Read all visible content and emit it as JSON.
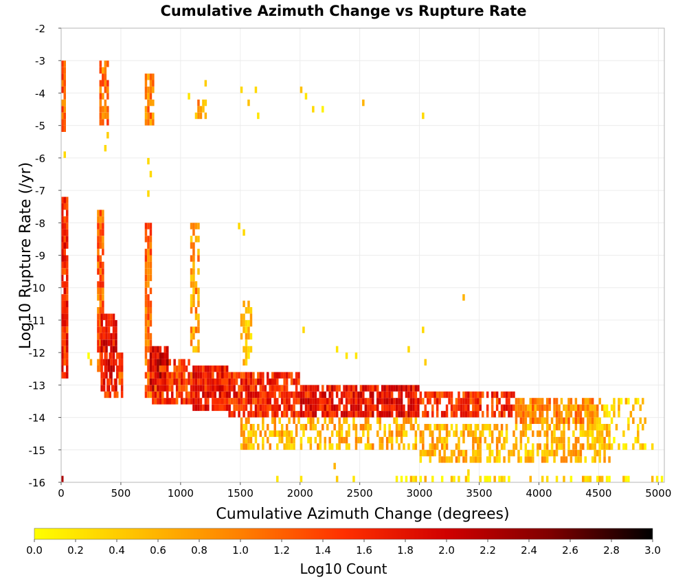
{
  "chart_data": {
    "type": "heatmap",
    "title": "Cumulative Azimuth Change vs Rupture Rate",
    "xlabel": "Cumulative Azimuth Change (degrees)",
    "ylabel": "Log10 Rupture Rate (/yr)",
    "xlim": [
      0,
      5050
    ],
    "ylim": [
      -16,
      -2
    ],
    "x_ticks": [
      0,
      500,
      1000,
      1500,
      2000,
      2500,
      3000,
      3500,
      4000,
      4500,
      5000
    ],
    "y_ticks": [
      -2,
      -3,
      -4,
      -5,
      -6,
      -7,
      -8,
      -9,
      -10,
      -11,
      -12,
      -13,
      -14,
      -15,
      -16
    ],
    "grid": true,
    "colorbar": {
      "label": "Log10 Count",
      "min": 0.0,
      "max": 3.0,
      "ticks": [
        "0.0",
        "0.2",
        "0.4",
        "0.6",
        "0.8",
        "1.0",
        "1.2",
        "1.4",
        "1.6",
        "1.8",
        "2.0",
        "2.2",
        "2.4",
        "2.6",
        "2.8",
        "3.0"
      ],
      "colors": [
        "#ffff00",
        "#ffc000",
        "#ff8000",
        "#ff3000",
        "#d00000",
        "#800000",
        "#000000"
      ],
      "placement": "bottom"
    },
    "bin_size": {
      "x": 20,
      "y": 0.2
    },
    "density_regions": [
      {
        "x_range": [
          0,
          60
        ],
        "y_range": [
          -12.8,
          -7.2
        ],
        "value": 1.6,
        "fill": 0.9
      },
      {
        "x_range": [
          0,
          40
        ],
        "y_range": [
          -5.2,
          -3.0
        ],
        "value": 1.2,
        "fill": 0.85
      },
      {
        "x_range": [
          200,
          260
        ],
        "y_range": [
          -12.6,
          -12.0
        ],
        "value": 0.3,
        "fill": 0.4
      },
      {
        "x_range": [
          300,
          360
        ],
        "y_range": [
          -12.6,
          -7.6
        ],
        "value": 1.2,
        "fill": 0.85
      },
      {
        "x_range": [
          330,
          460
        ],
        "y_range": [
          -13.2,
          -10.8
        ],
        "value": 1.8,
        "fill": 0.9
      },
      {
        "x_range": [
          320,
          400
        ],
        "y_range": [
          -5.0,
          -3.0
        ],
        "value": 1.1,
        "fill": 0.8
      },
      {
        "x_range": [
          360,
          520
        ],
        "y_range": [
          -13.4,
          -12.0
        ],
        "value": 1.3,
        "fill": 0.8
      },
      {
        "x_range": [
          700,
          760
        ],
        "y_range": [
          -13.4,
          -8.0
        ],
        "value": 1.2,
        "fill": 0.85
      },
      {
        "x_range": [
          740,
          900
        ],
        "y_range": [
          -13.2,
          -11.8
        ],
        "value": 2.0,
        "fill": 0.9
      },
      {
        "x_range": [
          700,
          780
        ],
        "y_range": [
          -5.0,
          -3.4
        ],
        "value": 1.0,
        "fill": 0.75
      },
      {
        "x_range": [
          760,
          1100
        ],
        "y_range": [
          -13.6,
          -12.2
        ],
        "value": 1.5,
        "fill": 0.85
      },
      {
        "x_range": [
          1080,
          1150
        ],
        "y_range": [
          -12.0,
          -8.0
        ],
        "value": 0.8,
        "fill": 0.6
      },
      {
        "x_range": [
          1100,
          1400
        ],
        "y_range": [
          -13.8,
          -12.4
        ],
        "value": 1.7,
        "fill": 0.9
      },
      {
        "x_range": [
          1120,
          1220
        ],
        "y_range": [
          -4.8,
          -4.2
        ],
        "value": 0.8,
        "fill": 0.7
      },
      {
        "x_range": [
          1400,
          2000
        ],
        "y_range": [
          -14.0,
          -12.6
        ],
        "value": 1.6,
        "fill": 0.85
      },
      {
        "x_range": [
          1500,
          1600
        ],
        "y_range": [
          -12.4,
          -10.4
        ],
        "value": 0.5,
        "fill": 0.5
      },
      {
        "x_range": [
          2000,
          3000
        ],
        "y_range": [
          -14.0,
          -13.0
        ],
        "value": 1.7,
        "fill": 0.85
      },
      {
        "x_range": [
          3000,
          3800
        ],
        "y_range": [
          -14.0,
          -13.2
        ],
        "value": 1.5,
        "fill": 0.8
      },
      {
        "x_range": [
          3800,
          4500
        ],
        "y_range": [
          -14.2,
          -13.4
        ],
        "value": 0.9,
        "fill": 0.7
      },
      {
        "x_range": [
          1500,
          3000
        ],
        "y_range": [
          -15.0,
          -14.0
        ],
        "value": 0.6,
        "fill": 0.5
      },
      {
        "x_range": [
          3000,
          4600
        ],
        "y_range": [
          -15.4,
          -14.2
        ],
        "value": 0.6,
        "fill": 0.55
      },
      {
        "x_range": [
          4400,
          4900
        ],
        "y_range": [
          -15.0,
          -13.4
        ],
        "value": 0.4,
        "fill": 0.4
      },
      {
        "x_range": [
          2800,
          5040
        ],
        "y_range": [
          -16.0,
          -15.8
        ],
        "value": 0.3,
        "fill": 0.45
      },
      {
        "x_range": [
          0,
          20
        ],
        "y_range": [
          -16.0,
          -15.8
        ],
        "value": 2.6,
        "fill": 1.0
      }
    ],
    "points": [
      {
        "x": 1060,
        "y": -4.2,
        "value": 0.2
      },
      {
        "x": 1200,
        "y": -3.8,
        "value": 0.4
      },
      {
        "x": 1500,
        "y": -4.0,
        "value": 0.3
      },
      {
        "x": 1620,
        "y": -4.0,
        "value": 0.3
      },
      {
        "x": 1560,
        "y": -4.4,
        "value": 0.5
      },
      {
        "x": 2000,
        "y": -4.0,
        "value": 0.5
      },
      {
        "x": 2040,
        "y": -4.2,
        "value": 0.2
      },
      {
        "x": 2180,
        "y": -4.6,
        "value": 0.1
      },
      {
        "x": 2520,
        "y": -4.4,
        "value": 0.6
      },
      {
        "x": 3020,
        "y": -4.8,
        "value": 0.3
      },
      {
        "x": 1640,
        "y": -4.8,
        "value": 0.2
      },
      {
        "x": 2100,
        "y": -4.6,
        "value": 0.3
      },
      {
        "x": 720,
        "y": -6.2,
        "value": 0.3
      },
      {
        "x": 740,
        "y": -6.6,
        "value": 0.3
      },
      {
        "x": 720,
        "y": -7.2,
        "value": 0.3
      },
      {
        "x": 20,
        "y": -6.0,
        "value": 0.3
      },
      {
        "x": 360,
        "y": -5.8,
        "value": 0.3
      },
      {
        "x": 380,
        "y": -5.4,
        "value": 0.4
      },
      {
        "x": 3360,
        "y": -10.4,
        "value": 0.6
      },
      {
        "x": 2020,
        "y": -11.4,
        "value": 0.3
      },
      {
        "x": 3020,
        "y": -11.4,
        "value": 0.3
      },
      {
        "x": 2900,
        "y": -12.0,
        "value": 0.3
      },
      {
        "x": 3040,
        "y": -12.4,
        "value": 0.4
      },
      {
        "x": 1800,
        "y": -16.0,
        "value": 0.2
      },
      {
        "x": 2000,
        "y": -16.0,
        "value": 0.2
      },
      {
        "x": 2300,
        "y": -16.0,
        "value": 0.4
      },
      {
        "x": 2440,
        "y": -16.0,
        "value": 0.2
      },
      {
        "x": 2280,
        "y": -15.6,
        "value": 0.6
      },
      {
        "x": 1480,
        "y": -8.2,
        "value": 0.3
      },
      {
        "x": 1520,
        "y": -8.4,
        "value": 0.3
      },
      {
        "x": 2300,
        "y": -12.0,
        "value": 0.2
      },
      {
        "x": 2380,
        "y": -12.2,
        "value": 0.2
      },
      {
        "x": 2460,
        "y": -12.2,
        "value": 0.2
      },
      {
        "x": 3400,
        "y": -15.8,
        "value": 0.3
      },
      {
        "x": 3820,
        "y": -15.2,
        "value": 0.5
      },
      {
        "x": 4940,
        "y": -15.0,
        "value": 0.3
      }
    ]
  }
}
